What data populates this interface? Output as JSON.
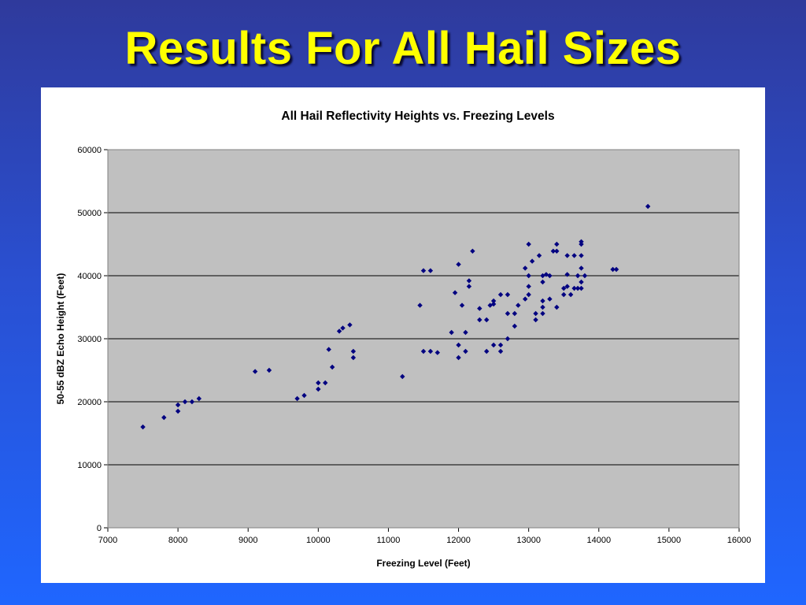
{
  "slide": {
    "title": "Results For All Hail Sizes"
  },
  "chart_data": {
    "type": "scatter",
    "title": "All Hail Reflectivity Heights vs. Freezing Levels",
    "xlabel": "Freezing Level (Feet)",
    "ylabel": "50-55 dBZ Echo Height (Feet)",
    "xlim": [
      7000,
      16000
    ],
    "ylim": [
      0,
      60000
    ],
    "x_ticks": [
      7000,
      8000,
      9000,
      10000,
      11000,
      12000,
      13000,
      14000,
      15000,
      16000
    ],
    "y_ticks": [
      0,
      10000,
      20000,
      30000,
      40000,
      50000,
      60000
    ],
    "grid": "horizontal",
    "legend": "none",
    "colors": {
      "plot_bg": "#c0c0c0",
      "marker": "#000080",
      "grid": "#000000"
    },
    "points": [
      [
        7500,
        16000
      ],
      [
        7800,
        17500
      ],
      [
        8000,
        18500
      ],
      [
        8000,
        19500
      ],
      [
        8100,
        20000
      ],
      [
        8200,
        20000
      ],
      [
        8300,
        20500
      ],
      [
        9100,
        24800
      ],
      [
        9300,
        25000
      ],
      [
        9700,
        20500
      ],
      [
        9800,
        21000
      ],
      [
        10000,
        22000
      ],
      [
        10000,
        23000
      ],
      [
        10100,
        23000
      ],
      [
        10200,
        25500
      ],
      [
        10150,
        28300
      ],
      [
        10300,
        31200
      ],
      [
        10350,
        31700
      ],
      [
        10450,
        32200
      ],
      [
        10500,
        28000
      ],
      [
        10500,
        27000
      ],
      [
        11200,
        24000
      ],
      [
        11450,
        35300
      ],
      [
        11500,
        40800
      ],
      [
        11600,
        40800
      ],
      [
        11500,
        28000
      ],
      [
        11600,
        28000
      ],
      [
        11700,
        27800
      ],
      [
        11900,
        31000
      ],
      [
        11950,
        37300
      ],
      [
        12000,
        41800
      ],
      [
        12000,
        29000
      ],
      [
        12000,
        27000
      ],
      [
        12050,
        35300
      ],
      [
        12100,
        31000
      ],
      [
        12100,
        28000
      ],
      [
        12150,
        39200
      ],
      [
        12150,
        38300
      ],
      [
        12200,
        43900
      ],
      [
        12300,
        34800
      ],
      [
        12300,
        33000
      ],
      [
        12400,
        33000
      ],
      [
        12400,
        28000
      ],
      [
        12450,
        35300
      ],
      [
        12500,
        36000
      ],
      [
        12500,
        35500
      ],
      [
        12500,
        29000
      ],
      [
        12600,
        37000
      ],
      [
        12600,
        29000
      ],
      [
        12600,
        28000
      ],
      [
        12700,
        37000
      ],
      [
        12700,
        34000
      ],
      [
        12700,
        30000
      ],
      [
        12800,
        34000
      ],
      [
        12800,
        32000
      ],
      [
        12850,
        35300
      ],
      [
        12950,
        41200
      ],
      [
        12950,
        36300
      ],
      [
        13000,
        45000
      ],
      [
        13000,
        40000
      ],
      [
        13000,
        38300
      ],
      [
        13000,
        37000
      ],
      [
        13050,
        42300
      ],
      [
        13100,
        34000
      ],
      [
        13100,
        33000
      ],
      [
        13150,
        43200
      ],
      [
        13200,
        40000
      ],
      [
        13200,
        39000
      ],
      [
        13200,
        36000
      ],
      [
        13200,
        35000
      ],
      [
        13200,
        34000
      ],
      [
        13250,
        40200
      ],
      [
        13300,
        40000
      ],
      [
        13300,
        36300
      ],
      [
        13350,
        43900
      ],
      [
        13400,
        45000
      ],
      [
        13400,
        43900
      ],
      [
        13400,
        35000
      ],
      [
        13500,
        38000
      ],
      [
        13500,
        37000
      ],
      [
        13550,
        43200
      ],
      [
        13550,
        40200
      ],
      [
        13550,
        38300
      ],
      [
        13600,
        37000
      ],
      [
        13650,
        43200
      ],
      [
        13650,
        38000
      ],
      [
        13700,
        40000
      ],
      [
        13700,
        38000
      ],
      [
        13750,
        45400
      ],
      [
        13750,
        45000
      ],
      [
        13750,
        43200
      ],
      [
        13750,
        41200
      ],
      [
        13750,
        39000
      ],
      [
        13750,
        38000
      ],
      [
        13800,
        40000
      ],
      [
        14200,
        41000
      ],
      [
        14250,
        41000
      ],
      [
        14700,
        51000
      ]
    ]
  }
}
